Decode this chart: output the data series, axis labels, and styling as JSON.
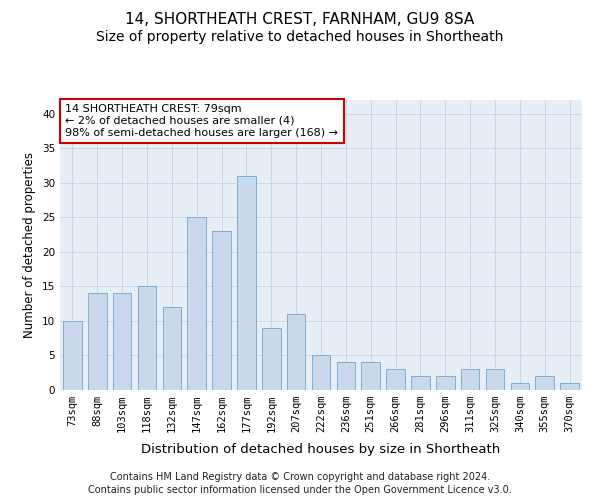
{
  "title": "14, SHORTHEATH CREST, FARNHAM, GU9 8SA",
  "subtitle": "Size of property relative to detached houses in Shortheath",
  "xlabel": "Distribution of detached houses by size in Shortheath",
  "ylabel": "Number of detached properties",
  "categories": [
    "73sqm",
    "88sqm",
    "103sqm",
    "118sqm",
    "132sqm",
    "147sqm",
    "162sqm",
    "177sqm",
    "192sqm",
    "207sqm",
    "222sqm",
    "236sqm",
    "251sqm",
    "266sqm",
    "281sqm",
    "296sqm",
    "311sqm",
    "325sqm",
    "340sqm",
    "355sqm",
    "370sqm"
  ],
  "values": [
    10,
    14,
    14,
    15,
    12,
    25,
    23,
    31,
    9,
    11,
    5,
    4,
    4,
    3,
    2,
    2,
    3,
    3,
    1,
    2,
    1
  ],
  "bar_color": "#c9d9eb",
  "bar_edge_color": "#7bafd4",
  "annotation_box_text": "14 SHORTHEATH CREST: 79sqm\n← 2% of detached houses are smaller (4)\n98% of semi-detached houses are larger (168) →",
  "annotation_box_edge_color": "#cc0000",
  "annotation_box_fill": "#ffffff",
  "ylim": [
    0,
    42
  ],
  "yticks": [
    0,
    5,
    10,
    15,
    20,
    25,
    30,
    35,
    40
  ],
  "grid_color": "#c8d8e8",
  "background_color": "#e8eef5",
  "footnote1": "Contains HM Land Registry data © Crown copyright and database right 2024.",
  "footnote2": "Contains public sector information licensed under the Open Government Licence v3.0.",
  "title_fontsize": 11,
  "subtitle_fontsize": 10,
  "xlabel_fontsize": 9.5,
  "ylabel_fontsize": 8.5,
  "tick_fontsize": 7.5,
  "annotation_fontsize": 8,
  "footnote_fontsize": 7
}
